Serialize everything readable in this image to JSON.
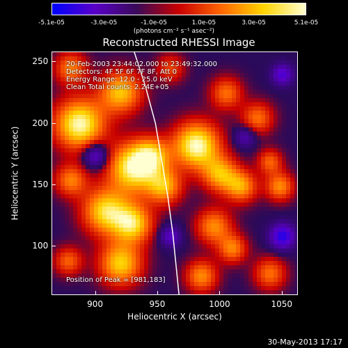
{
  "colorbar": {
    "ticks": [
      "-5.1e-05",
      "-3.0e-05",
      "-1.0e-05",
      "1.0e-05",
      "3.0e-05",
      "5.1e-05"
    ],
    "tick_values": [
      -5.1e-05,
      -3e-05,
      -1e-05,
      1e-05,
      3e-05,
      5.1e-05
    ],
    "range": [
      -5.1e-05,
      5.1e-05
    ],
    "units": "(photons cm⁻² s⁻¹ asec⁻²)",
    "colors": [
      "#0000ff",
      "#5a00c8",
      "#3a0a5a",
      "#c80000",
      "#ff6600",
      "#ffd400",
      "#ffffd0"
    ]
  },
  "title": "Reconstructed RHESSI Image",
  "info": {
    "line1": "20-Feb-2003 23:44:02.000 to 23:49:32.000",
    "line2": "Detectors: 4F 5F 6F 7F 8F, Att 0",
    "line3": "Energy Range: 12.0 - 25.0 keV",
    "line4": "Clean    Total counts: 2.24E+05",
    "peak": "Position of Peak = [981,183]"
  },
  "footer": "30-May-2013 17:17",
  "chart_data": {
    "type": "heatmap",
    "title": "Reconstructed RHESSI Image",
    "xlabel": "Heliocentric X (arcsec)",
    "ylabel": "Heliocentric Y (arcsec)",
    "xlim": [
      865,
      1063
    ],
    "ylim": [
      60,
      258
    ],
    "xticks": [
      900,
      950,
      1000,
      1050
    ],
    "yticks": [
      100,
      150,
      200,
      250
    ],
    "xtick_labels": [
      "900",
      "950",
      "1000",
      "1050"
    ],
    "ytick_labels": [
      "100",
      "150",
      "200",
      "250"
    ],
    "peak_position": [
      981,
      183
    ],
    "limb_curve": [
      [
        931,
        258
      ],
      [
        940,
        230
      ],
      [
        948,
        200
      ],
      [
        953,
        170
      ],
      [
        958,
        140
      ],
      [
        962,
        110
      ],
      [
        965,
        80
      ],
      [
        967,
        60
      ]
    ],
    "blobs": [
      {
        "x": 887,
        "y": 200,
        "r": 14,
        "v": 5e-05
      },
      {
        "x": 920,
        "y": 226,
        "r": 12,
        "v": 3.8e-05
      },
      {
        "x": 930,
        "y": 165,
        "r": 14,
        "v": 4.8e-05
      },
      {
        "x": 945,
        "y": 175,
        "r": 10,
        "v": 3.2e-05
      },
      {
        "x": 908,
        "y": 130,
        "r": 13,
        "v": 4.2e-05
      },
      {
        "x": 930,
        "y": 120,
        "r": 11,
        "v": 4e-05
      },
      {
        "x": 920,
        "y": 88,
        "r": 12,
        "v": 4e-05
      },
      {
        "x": 955,
        "y": 150,
        "r": 10,
        "v": 3.4e-05
      },
      {
        "x": 981,
        "y": 183,
        "r": 13,
        "v": 5.1e-05
      },
      {
        "x": 1000,
        "y": 160,
        "r": 10,
        "v": 3.4e-05
      },
      {
        "x": 1017,
        "y": 150,
        "r": 9,
        "v": 3.2e-05
      },
      {
        "x": 995,
        "y": 118,
        "r": 10,
        "v": 3e-05
      },
      {
        "x": 1010,
        "y": 100,
        "r": 8,
        "v": 2.8e-05
      },
      {
        "x": 1005,
        "y": 225,
        "r": 9,
        "v": 2.6e-05
      },
      {
        "x": 1030,
        "y": 205,
        "r": 9,
        "v": 2.6e-05
      },
      {
        "x": 1048,
        "y": 150,
        "r": 8,
        "v": 3e-05
      },
      {
        "x": 1040,
        "y": 170,
        "r": 7,
        "v": 2.4e-05
      },
      {
        "x": 880,
        "y": 245,
        "r": 9,
        "v": 2.8e-05
      },
      {
        "x": 880,
        "y": 155,
        "r": 9,
        "v": 2.8e-05
      },
      {
        "x": 878,
        "y": 90,
        "r": 8,
        "v": 2.4e-05
      },
      {
        "x": 985,
        "y": 78,
        "r": 9,
        "v": 3e-05
      },
      {
        "x": 1040,
        "y": 80,
        "r": 9,
        "v": 2.6e-05
      },
      {
        "x": 960,
        "y": 245,
        "r": 8,
        "v": 2e-05
      },
      {
        "x": 1050,
        "y": 240,
        "r": 6,
        "v": -3e-05
      },
      {
        "x": 1050,
        "y": 110,
        "r": 7,
        "v": -4e-05
      },
      {
        "x": 900,
        "y": 175,
        "r": 7,
        "v": -3e-05
      },
      {
        "x": 960,
        "y": 110,
        "r": 6,
        "v": -2.5e-05
      },
      {
        "x": 1020,
        "y": 190,
        "r": 6,
        "v": -2e-05
      }
    ]
  }
}
